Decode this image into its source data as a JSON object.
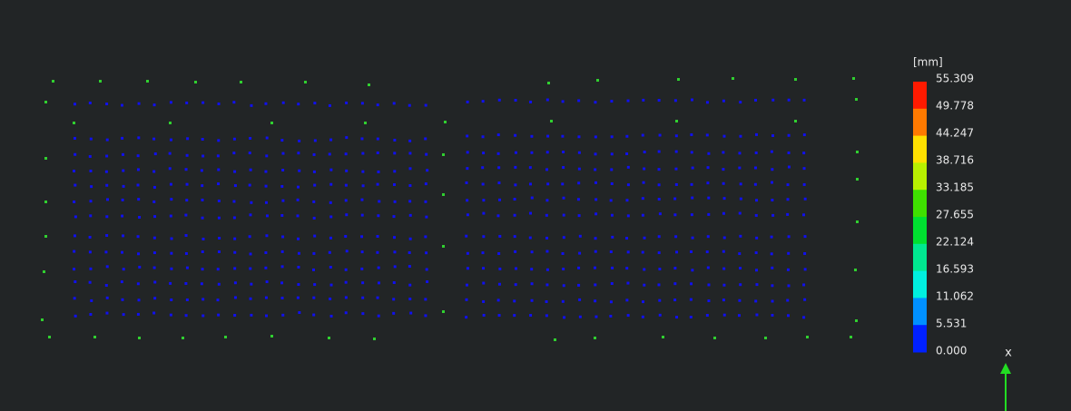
{
  "scale": {
    "unit": "[mm]",
    "labels": [
      "55.309",
      "49.778",
      "44.247",
      "38.716",
      "33.185",
      "27.655",
      "22.124",
      "16.593",
      "11.062",
      "5.531",
      "0.000"
    ]
  },
  "axis_label": "x"
}
